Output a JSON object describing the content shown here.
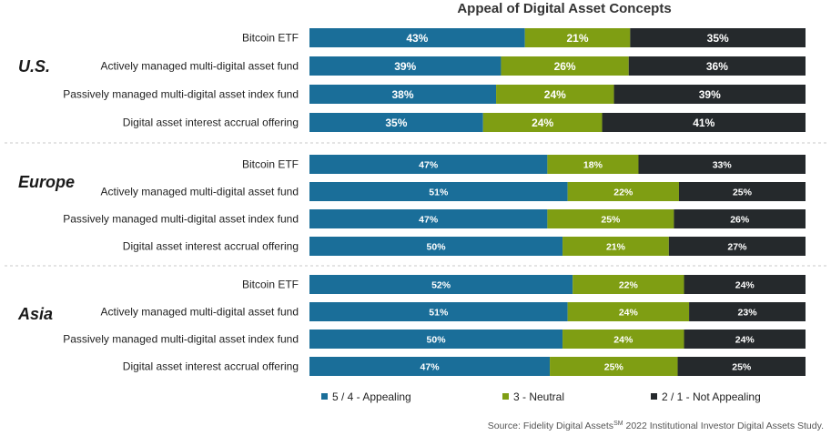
{
  "chart_data": {
    "type": "bar",
    "orientation": "horizontal",
    "stacked": true,
    "percent_stacked": true,
    "title": "Appeal of Digital Asset Concepts",
    "categories": [
      "Bitcoin ETF",
      "Actively managed multi-digital asset fund",
      "Passively managed multi-digital asset index fund",
      "Digital asset interest accrual offering"
    ],
    "legend": {
      "placement": "bottom",
      "items": [
        {
          "name": "5 / 4 - Appealing",
          "color": "#1a6e99"
        },
        {
          "name": "3 - Neutral",
          "color": "#7f9e13"
        },
        {
          "name": "2 / 1 - Not Appealing",
          "color": "#25292c"
        }
      ]
    },
    "groups": [
      {
        "region": "U.S.",
        "series": [
          {
            "name": "5 / 4 - Appealing",
            "values": [
              43,
              39,
              38,
              35
            ]
          },
          {
            "name": "3 - Neutral",
            "values": [
              21,
              26,
              24,
              24
            ]
          },
          {
            "name": "2 / 1 - Not Appealing",
            "values": [
              35,
              36,
              39,
              41
            ]
          }
        ]
      },
      {
        "region": "Europe",
        "series": [
          {
            "name": "5 / 4 - Appealing",
            "values": [
              47,
              51,
              47,
              50
            ]
          },
          {
            "name": "3 - Neutral",
            "values": [
              18,
              22,
              25,
              21
            ]
          },
          {
            "name": "2 / 1 - Not Appealing",
            "values": [
              33,
              25,
              26,
              27
            ]
          }
        ]
      },
      {
        "region": "Asia",
        "series": [
          {
            "name": "5 / 4 - Appealing",
            "values": [
              52,
              51,
              50,
              47
            ]
          },
          {
            "name": "3 - Neutral",
            "values": [
              22,
              24,
              24,
              25
            ]
          },
          {
            "name": "2 / 1 - Not Appealing",
            "values": [
              24,
              23,
              24,
              25
            ]
          }
        ]
      }
    ],
    "value_suffix": "%",
    "source": {
      "prefix": "Source: Fidelity Digital Assets",
      "superscript": "SM",
      "suffix": " 2022 Institutional Investor Digital Assets Study."
    }
  }
}
